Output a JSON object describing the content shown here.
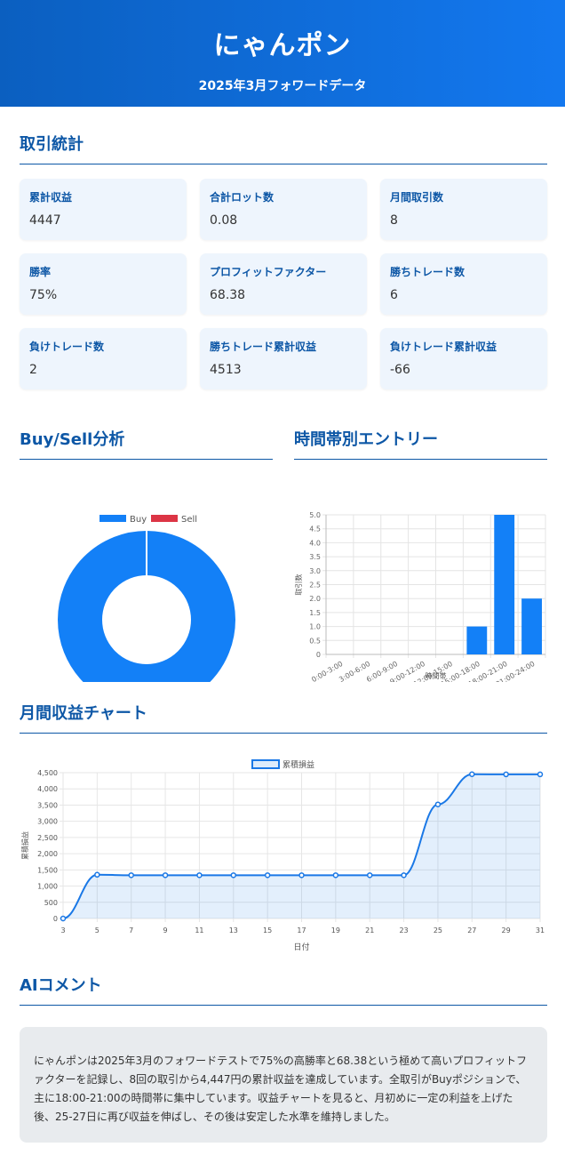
{
  "header": {
    "title": "にゃんポン",
    "subtitle": "2025年3月フォワードデータ"
  },
  "stats": {
    "title": "取引統計",
    "items": [
      {
        "label": "累計収益",
        "value": "4447"
      },
      {
        "label": "合計ロット数",
        "value": "0.08"
      },
      {
        "label": "月間取引数",
        "value": "8"
      },
      {
        "label": "勝率",
        "value": "75%"
      },
      {
        "label": "プロフィットファクター",
        "value": "68.38"
      },
      {
        "label": "勝ちトレード数",
        "value": "6"
      },
      {
        "label": "負けトレード数",
        "value": "2"
      },
      {
        "label": "勝ちトレード累計収益",
        "value": "4513"
      },
      {
        "label": "負けトレード累計収益",
        "value": "-66"
      }
    ]
  },
  "sections": {
    "buysell_title": "Buy/Sell分析",
    "time_title": "時間帯別エントリー",
    "monthly_title": "月間収益チャート",
    "ai_title": "AIコメント"
  },
  "colors": {
    "buy": "#1380f7",
    "sell": "#dc3545",
    "accent": "#0d57a6",
    "line": "#1a78e6"
  },
  "chart_data": [
    {
      "type": "pie",
      "subtype": "doughnut",
      "labels": [
        "Buy",
        "Sell"
      ],
      "values": [
        8,
        0
      ],
      "legend": "top"
    },
    {
      "type": "bar",
      "categories": [
        "0:00-3:00",
        "3:00-6:00",
        "6:00-9:00",
        "9:00-12:00",
        "12:00-15:00",
        "15:00-18:00",
        "18:00-21:00",
        "21:00-24:00"
      ],
      "values": [
        0,
        0,
        0,
        0,
        0,
        1,
        5,
        2
      ],
      "xlabel": "時間帯",
      "ylabel": "取引数",
      "ylim": [
        0,
        5
      ],
      "yticks": [
        "0",
        "0.5",
        "1.0",
        "1.5",
        "2.0",
        "2.5",
        "3.0",
        "3.5",
        "4.0",
        "4.5",
        "5.0"
      ],
      "grid": true
    },
    {
      "type": "area",
      "x": [
        3,
        5,
        7,
        9,
        11,
        13,
        15,
        17,
        19,
        21,
        23,
        25,
        27,
        29,
        31
      ],
      "series": [
        {
          "name": "累積損益",
          "values": [
            0,
            1350,
            1335,
            1335,
            1335,
            1335,
            1335,
            1335,
            1335,
            1335,
            1335,
            3520,
            4452,
            4447,
            4447
          ]
        }
      ],
      "xlabel": "日付",
      "ylabel": "累積損益",
      "ylim": [
        0,
        4500
      ],
      "yticks": [
        "0",
        "500",
        "1,000",
        "1,500",
        "2,000",
        "2,500",
        "3,000",
        "3,500",
        "4,000",
        "4,500"
      ],
      "legend": "top",
      "grid": true
    }
  ],
  "ai": {
    "comment": "にゃんポンは2025年3月のフォワードテストで75%の高勝率と68.38という極めて高いプロフィットファクターを記録し、8回の取引から4,447円の累計収益を達成しています。全取引がBuyポジションで、主に18:00-21:00の時間帯に集中しています。収益チャートを見ると、月初めに一定の利益を上げた後、25-27日に再び収益を伸ばし、その後は安定した水準を維持しました。"
  }
}
